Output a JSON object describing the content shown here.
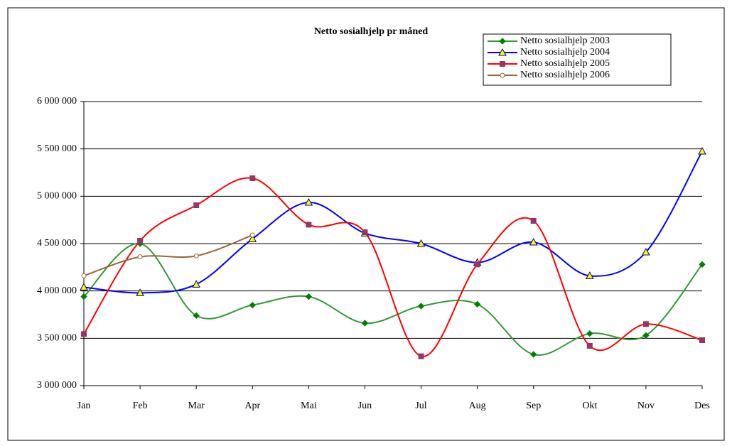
{
  "chart_data": {
    "type": "line",
    "title": "Netto sosialhjelp pr måned",
    "categories": [
      "Jan",
      "Feb",
      "Mar",
      "Apr",
      "Mai",
      "Jun",
      "Jul",
      "Aug",
      "Sep",
      "Okt",
      "Nov",
      "Des"
    ],
    "ylim": [
      3000000,
      6000000
    ],
    "yticks": [
      {
        "value": 3000000,
        "label": "3 000 000"
      },
      {
        "value": 3500000,
        "label": "3 500 000"
      },
      {
        "value": 4000000,
        "label": "4 000 000"
      },
      {
        "value": 4500000,
        "label": "4 500 000"
      },
      {
        "value": 5000000,
        "label": "5 000 000"
      },
      {
        "value": 5500000,
        "label": "5 500 000"
      },
      {
        "value": 6000000,
        "label": "6 000 000"
      }
    ],
    "grid": true,
    "legend": "top-right",
    "smooth": true,
    "series": [
      {
        "name": "Netto sosialhjelp 2003",
        "color": "#339933",
        "marker": "diamond",
        "marker_fill": "#008000",
        "values": [
          3940000,
          4500000,
          3740000,
          3850000,
          3940000,
          3660000,
          3840000,
          3860000,
          3330000,
          3550000,
          3530000,
          4280000
        ]
      },
      {
        "name": "Netto sosialhjelp 2004",
        "color": "#0000ff",
        "marker": "triangle",
        "marker_fill": "#ffff00",
        "values": [
          4040000,
          3980000,
          4070000,
          4550000,
          4935000,
          4610000,
          4500000,
          4300000,
          4515000,
          4160000,
          4410000,
          5475000
        ]
      },
      {
        "name": "Netto sosialhjelp 2005",
        "color": "#ff0000",
        "marker": "square",
        "marker_fill": "#993366",
        "values": [
          3545000,
          4530000,
          4905000,
          5190000,
          4700000,
          4620000,
          3310000,
          4280000,
          4740000,
          3420000,
          3650000,
          3480000
        ]
      },
      {
        "name": "Netto sosialhjelp 2006",
        "color": "#996633",
        "marker": "circle",
        "marker_fill": "#ffffff",
        "values": [
          4160000,
          4360000,
          4370000,
          4590000,
          null,
          null,
          null,
          null,
          null,
          null,
          null,
          null
        ]
      }
    ]
  }
}
